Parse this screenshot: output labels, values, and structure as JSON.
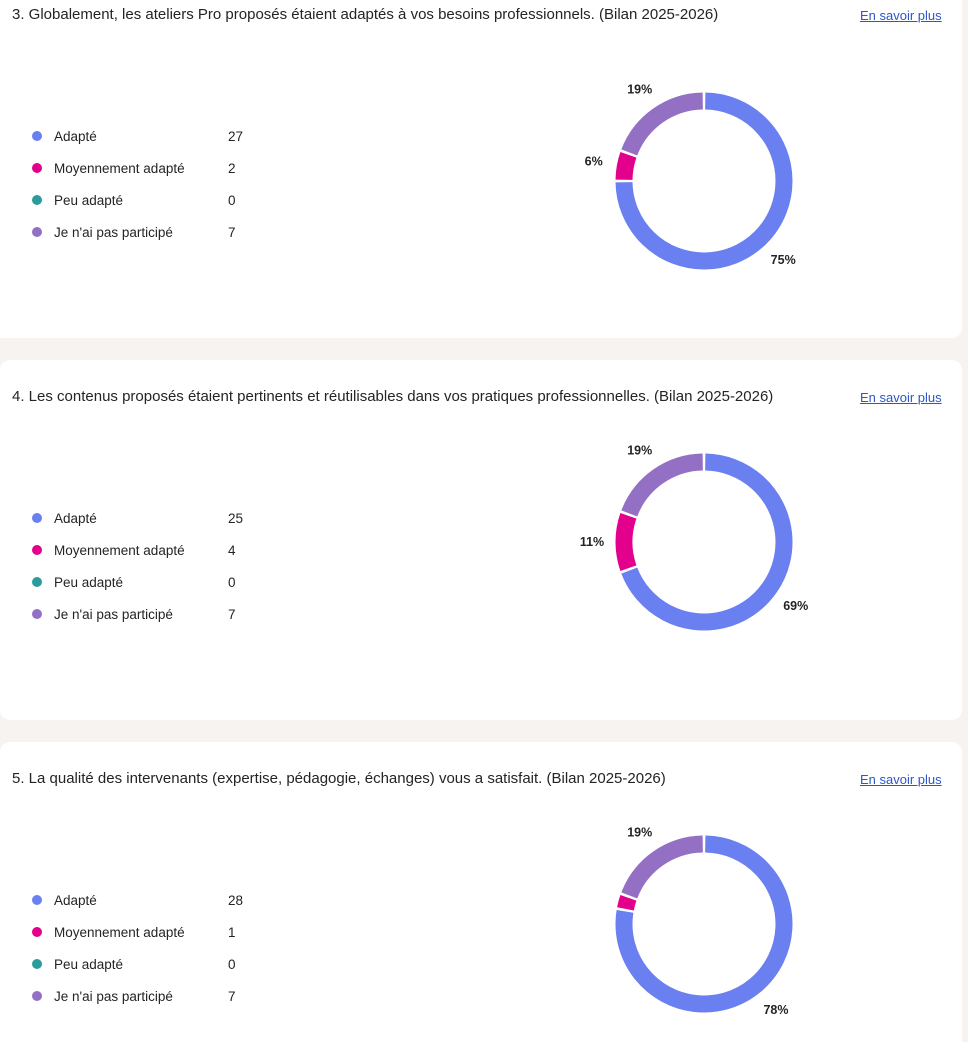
{
  "colors": {
    "adapte": "#6a7ff0",
    "moyennement": "#e3008c",
    "peu": "#2b9c9c",
    "pas_participe": "#9470c4",
    "link": "#2b57c8"
  },
  "questions": [
    {
      "title": "3. Globalement, les ateliers Pro proposés étaient adaptés à vos besoins professionnels. (Bilan 2025-2026)",
      "link": "En savoir plus",
      "legend": [
        {
          "label": "Adapté",
          "count": "27"
        },
        {
          "label": "Moyennement adapté",
          "count": "2"
        },
        {
          "label": "Peu adapté",
          "count": "0"
        },
        {
          "label": "Je n'ai pas participé",
          "count": "7"
        }
      ]
    },
    {
      "title": "4. Les contenus proposés étaient pertinents et réutilisables dans vos pratiques professionnelles. (Bilan 2025-2026)",
      "link": "En savoir plus",
      "legend": [
        {
          "label": "Adapté",
          "count": "25"
        },
        {
          "label": "Moyennement adapté",
          "count": "4"
        },
        {
          "label": "Peu adapté",
          "count": "0"
        },
        {
          "label": "Je n'ai pas participé",
          "count": "7"
        }
      ]
    },
    {
      "title": "5. La qualité des intervenants (expertise, pédagogie, échanges) vous a satisfait. (Bilan 2025-2026)",
      "link": "En savoir plus",
      "legend": [
        {
          "label": "Adapté",
          "count": "28"
        },
        {
          "label": "Moyennement adapté",
          "count": "1"
        },
        {
          "label": "Peu adapté",
          "count": "0"
        },
        {
          "label": "Je n'ai pas participé",
          "count": "7"
        }
      ]
    }
  ],
  "chart_data": [
    {
      "type": "pie",
      "categories": [
        "Adapté",
        "Moyennement adapté",
        "Peu adapté",
        "Je n'ai pas participé"
      ],
      "values": [
        27,
        2,
        0,
        7
      ],
      "labels": [
        "75%",
        "6%",
        "",
        "19%"
      ]
    },
    {
      "type": "pie",
      "categories": [
        "Adapté",
        "Moyennement adapté",
        "Peu adapté",
        "Je n'ai pas participé"
      ],
      "values": [
        25,
        4,
        0,
        7
      ],
      "labels": [
        "69%",
        "11%",
        "",
        "19%"
      ]
    },
    {
      "type": "pie",
      "categories": [
        "Adapté",
        "Moyennement adapté",
        "Peu adapté",
        "Je n'ai pas participé"
      ],
      "values": [
        28,
        1,
        0,
        7
      ],
      "labels": [
        "78%",
        "",
        "",
        "19%"
      ]
    }
  ]
}
